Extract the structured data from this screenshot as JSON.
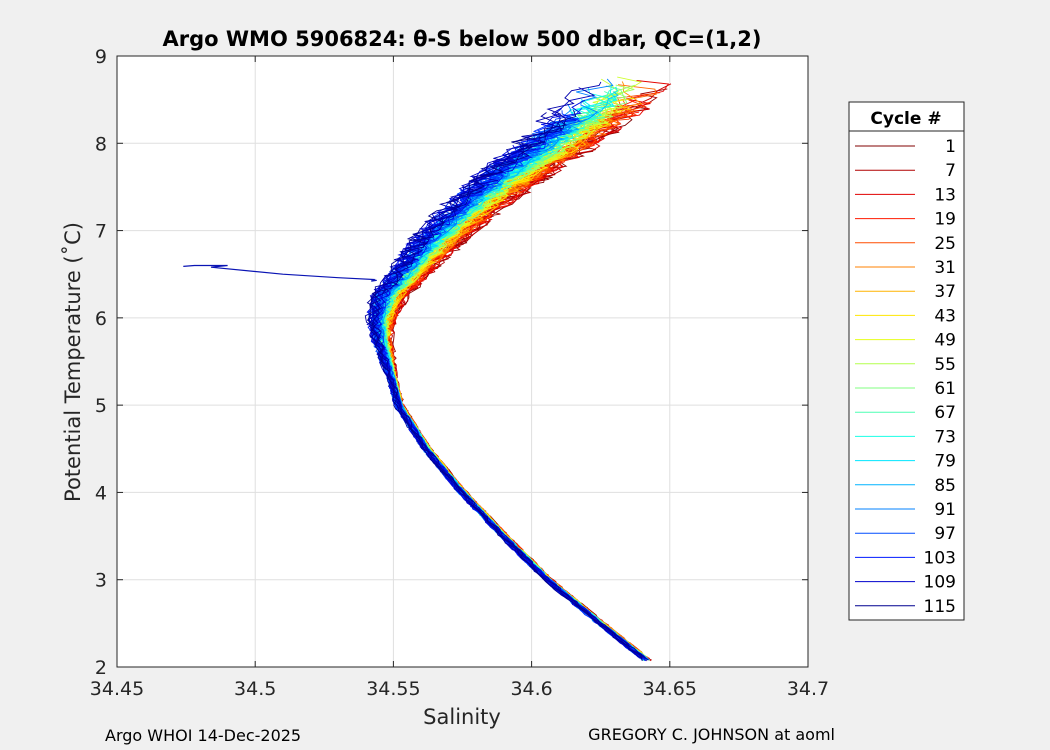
{
  "chart_data": {
    "type": "line",
    "title": "Argo WMO 5906824: θ-S below 500 dbar,  QC=(1,2)",
    "xlabel": "Salinity",
    "ylabel": "Potential Temperature (˚C)",
    "xlim": [
      34.45,
      34.7
    ],
    "ylim": [
      2,
      9
    ],
    "xticks": [
      "34.45",
      "34.5",
      "34.55",
      "34.6",
      "34.65",
      "34.7"
    ],
    "yticks": [
      "2",
      "3",
      "4",
      "5",
      "6",
      "7",
      "8",
      "9"
    ],
    "grid": true,
    "legend": {
      "title": "Cycle #",
      "placement": "right",
      "entries": [
        "1",
        "7",
        "13",
        "19",
        "25",
        "31",
        "37",
        "43",
        "49",
        "55",
        "61",
        "67",
        "73",
        "79",
        "85",
        "91",
        "97",
        "103",
        "109",
        "115"
      ],
      "colors": [
        "#800000",
        "#b00000",
        "#e00000",
        "#ff1a00",
        "#ff4d00",
        "#ff8000",
        "#ffb300",
        "#ffe600",
        "#e6ff1a",
        "#b3ff4d",
        "#80ff80",
        "#4dffb3",
        "#1affe6",
        "#00e6ff",
        "#00b3ff",
        "#0080ff",
        "#004dff",
        "#001aff",
        "#0000cc",
        "#00008f"
      ]
    },
    "base_profile": {
      "salinity": [
        34.642,
        34.625,
        34.606,
        34.59,
        34.575,
        34.562,
        34.552,
        34.548,
        34.546,
        34.546,
        34.549,
        34.556,
        34.567,
        34.581,
        34.597,
        34.611,
        34.623,
        34.632
      ],
      "temperature": [
        2.07,
        2.5,
        3.0,
        3.5,
        4.0,
        4.5,
        5.0,
        5.5,
        5.75,
        6.0,
        6.25,
        6.5,
        6.9,
        7.3,
        7.7,
        8.0,
        8.3,
        8.55
      ]
    },
    "anomaly": {
      "salinity": [
        34.474,
        34.478,
        34.49,
        34.484,
        34.51,
        34.53,
        34.543,
        34.542,
        34.544
      ],
      "temperature": [
        6.59,
        6.6,
        6.6,
        6.58,
        6.5,
        6.46,
        6.44,
        6.42,
        6.43
      ]
    }
  },
  "footer": {
    "left": "Argo WHOI 14-Dec-2025",
    "right": "GREGORY C. JOHNSON at aoml"
  }
}
